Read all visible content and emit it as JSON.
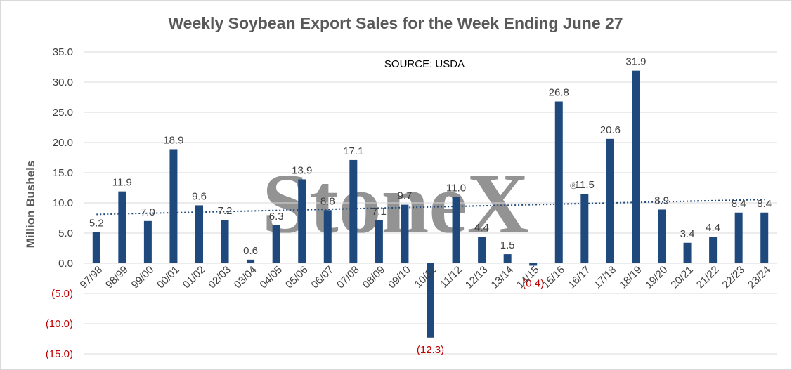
{
  "chart_data": {
    "type": "bar",
    "title": "Weekly Soybean Export Sales for the Week Ending June 27",
    "source_note": "SOURCE: USDA",
    "ylabel": "Million Bushels",
    "xlabel": "",
    "ylim": [
      -15,
      35
    ],
    "yticks": [
      35,
      30,
      25,
      20,
      15,
      10,
      5,
      0,
      -5,
      -10,
      -15
    ],
    "ytick_labels": [
      "35.0",
      "30.0",
      "25.0",
      "20.0",
      "15.0",
      "10.0",
      "5.0",
      "0.0",
      "(5.0)",
      "(10.0)",
      "(15.0)"
    ],
    "grid": true,
    "trendline": "linear",
    "categories": [
      "97/98",
      "98/99",
      "99/00",
      "00/01",
      "01/02",
      "02/03",
      "03/04",
      "04/05",
      "05/06",
      "06/07",
      "07/08",
      "08/09",
      "09/10",
      "10/11",
      "11/12",
      "12/13",
      "13/14",
      "14/15",
      "15/16",
      "16/17",
      "17/18",
      "18/19",
      "19/20",
      "20/21",
      "21/22",
      "22/23",
      "23/24"
    ],
    "values": [
      5.2,
      11.9,
      7.0,
      18.9,
      9.6,
      7.2,
      0.6,
      6.3,
      13.9,
      8.8,
      17.1,
      7.1,
      9.7,
      -12.3,
      11.0,
      4.4,
      1.5,
      -0.4,
      26.8,
      11.5,
      20.6,
      31.9,
      8.9,
      3.4,
      4.4,
      8.4,
      8.4
    ],
    "value_labels": [
      "5.2",
      "11.9",
      "7.0",
      "18.9",
      "9.6",
      "7.2",
      "0.6",
      "6.3",
      "13.9",
      "8.8",
      "17.1",
      "7.1",
      "9.7",
      "(12.3)",
      "11.0",
      "4.4",
      "1.5",
      "(0.4)",
      "26.8",
      "11.5",
      "20.6",
      "31.9",
      "8.9",
      "3.4",
      "4.4",
      "8.4",
      "8.4"
    ],
    "watermark": "StoneX",
    "colors": {
      "bar": "#1f497d",
      "trend": "#1f497d",
      "negative_text": "#c00000",
      "text": "#404040",
      "grid": "#d9d9d9"
    }
  }
}
